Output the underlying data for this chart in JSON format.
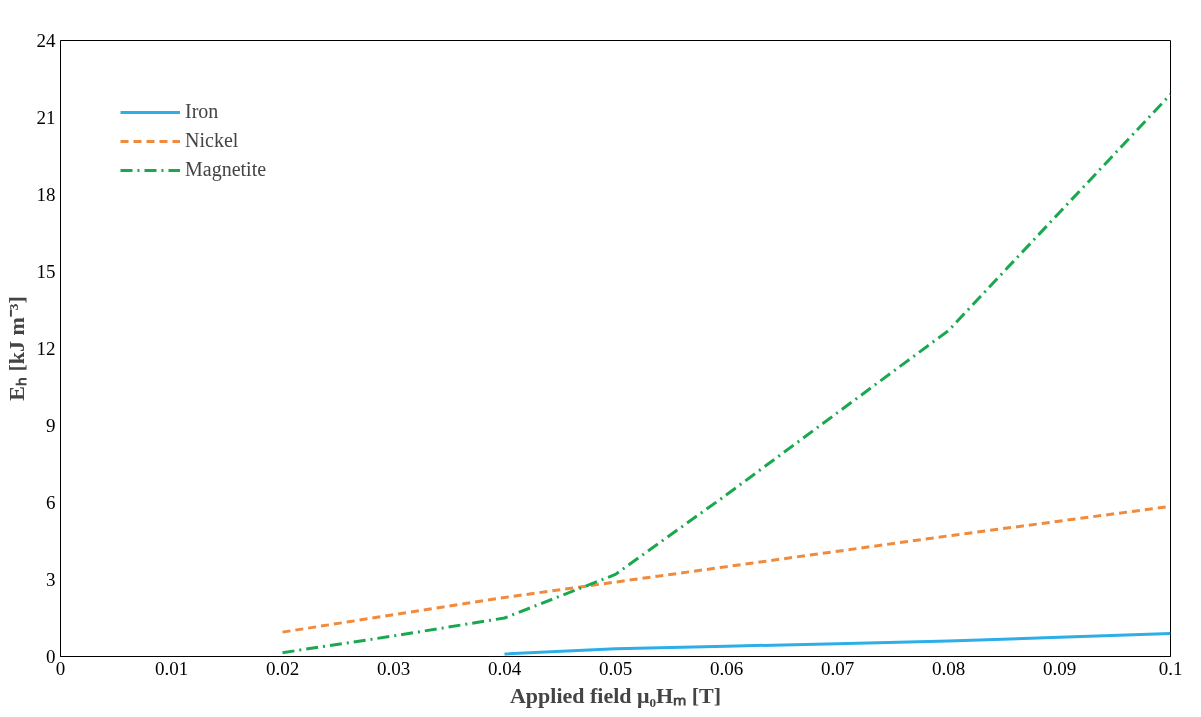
{
  "chart_data": {
    "type": "line",
    "xlabel": "Applied field μ₀Hₘ [T]",
    "ylabel": "Eₕ [kJ m⁻³]",
    "xlim": [
      0,
      0.1
    ],
    "xticks": [
      0,
      0.01,
      0.02,
      0.03,
      0.04,
      0.05,
      0.06,
      0.07,
      0.08,
      0.09,
      0.1
    ],
    "ylim": [
      0,
      24
    ],
    "yticks": [
      0,
      3,
      6,
      9,
      12,
      15,
      18,
      21,
      24
    ],
    "grid": false,
    "legend": "top left",
    "marker": "none",
    "series": [
      {
        "name": "Iron",
        "color": "#2eaee6",
        "line_style": "solid",
        "x": [
          0.04,
          0.05,
          0.06,
          0.07,
          0.08,
          0.09,
          0.1
        ],
        "values": [
          0.1,
          0.3,
          0.4,
          0.5,
          0.6,
          0.75,
          0.9
        ]
      },
      {
        "name": "Nickel",
        "color": "#f08a3c",
        "line_style": "dashed",
        "x": [
          0.02,
          0.04,
          0.05,
          0.06,
          0.08,
          0.1
        ],
        "values": [
          0.95,
          2.3,
          2.9,
          3.5,
          4.7,
          5.85
        ]
      },
      {
        "name": "Magnetite",
        "color": "#1aa84e",
        "line_style": "dashdot",
        "x": [
          0.02,
          0.03,
          0.04,
          0.05,
          0.06,
          0.07,
          0.08,
          0.09,
          0.1
        ],
        "values": [
          0.15,
          0.8,
          1.5,
          3.2,
          6.3,
          9.5,
          12.7,
          17.3,
          21.9
        ]
      }
    ]
  }
}
